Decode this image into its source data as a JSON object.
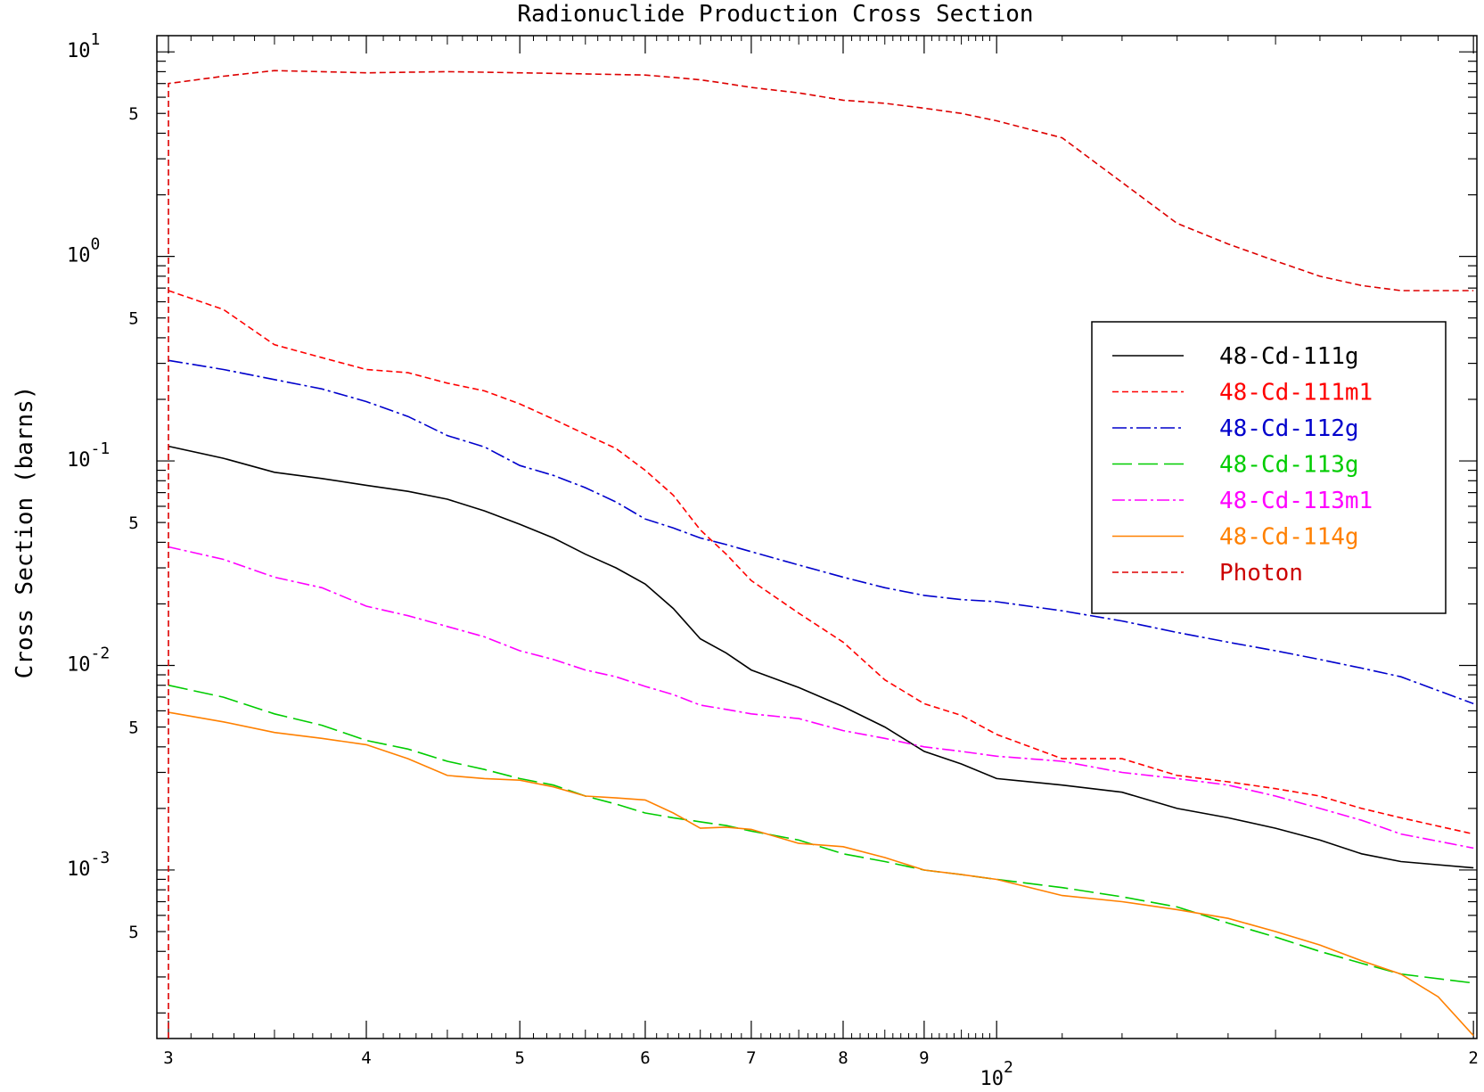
{
  "chart_data": {
    "type": "line",
    "title": "Radionuclide Production Cross Section",
    "ylabel": "Cross Section (barns)",
    "xlabel": "",
    "x_scale": "log",
    "y_scale": "log",
    "xlim": [
      29.5,
      201
    ],
    "ylim": [
      0.00015,
      12
    ],
    "x_ticks": [
      {
        "value": 30,
        "label": "3"
      },
      {
        "value": 40,
        "label": "4"
      },
      {
        "value": 50,
        "label": "5"
      },
      {
        "value": 60,
        "label": "6"
      },
      {
        "value": 70,
        "label": "7"
      },
      {
        "value": 80,
        "label": "8"
      },
      {
        "value": 90,
        "label": "9"
      },
      {
        "value": 100,
        "label": "10",
        "exponent": "2"
      },
      {
        "value": 200,
        "label": "2"
      }
    ],
    "y_major_ticks": [
      {
        "value": 10,
        "base": "10",
        "exponent": "1"
      },
      {
        "value": 1,
        "base": "10",
        "exponent": "0"
      },
      {
        "value": 0.1,
        "base": "10",
        "exponent": "-1"
      },
      {
        "value": 0.01,
        "base": "10",
        "exponent": "-2"
      },
      {
        "value": 0.001,
        "base": "10",
        "exponent": "-3"
      }
    ],
    "y_minor_labels": [
      {
        "value": 5,
        "label": "5"
      },
      {
        "value": 0.5,
        "label": "5"
      },
      {
        "value": 0.05,
        "label": "5"
      },
      {
        "value": 0.005,
        "label": "5"
      },
      {
        "value": 0.0005,
        "label": "5"
      }
    ],
    "grid": false,
    "legend_position": "right",
    "series": [
      {
        "name": "48-Cd-111g",
        "color": "#000000",
        "dash": "",
        "legend_color": "#000000",
        "x": [
          30,
          32.5,
          35,
          37.5,
          40,
          42.5,
          45,
          47.5,
          50,
          52.5,
          55,
          57.5,
          60,
          62.5,
          65,
          67.5,
          70,
          75,
          80,
          85,
          90,
          95,
          100,
          110,
          120,
          130,
          140,
          150,
          160,
          170,
          180,
          200
        ],
        "y": [
          0.118,
          0.103,
          0.088,
          0.082,
          0.076,
          0.071,
          0.065,
          0.057,
          0.049,
          0.042,
          0.035,
          0.03,
          0.025,
          0.019,
          0.0135,
          0.0115,
          0.0095,
          0.0078,
          0.0063,
          0.005,
          0.0038,
          0.0033,
          0.0028,
          0.0026,
          0.0024,
          0.002,
          0.0018,
          0.0016,
          0.0014,
          0.0012,
          0.0011,
          0.001025
        ]
      },
      {
        "name": "48-Cd-111m1",
        "color": "#ff0000",
        "dash": "7,4",
        "legend_color": "#ff0000",
        "x": [
          30,
          32.5,
          35,
          37.5,
          40,
          42.5,
          45,
          47.5,
          50,
          52.5,
          55,
          57.5,
          60,
          62.5,
          65,
          67.5,
          70,
          75,
          80,
          85,
          90,
          95,
          100,
          110,
          120,
          130,
          140,
          150,
          160,
          170,
          180,
          200
        ],
        "y": [
          0.68,
          0.55,
          0.37,
          0.32,
          0.28,
          0.27,
          0.24,
          0.22,
          0.19,
          0.16,
          0.135,
          0.115,
          0.09,
          0.068,
          0.046,
          0.035,
          0.026,
          0.018,
          0.013,
          0.0085,
          0.0065,
          0.0057,
          0.0046,
          0.0035,
          0.0035,
          0.0029,
          0.0027,
          0.0025,
          0.0023,
          0.002,
          0.0018,
          0.0015
        ]
      },
      {
        "name": "48-Cd-112g",
        "color": "#0000cc",
        "dash": "16,4,3,4",
        "legend_color": "#0000cc",
        "x": [
          30,
          32.5,
          35,
          37.5,
          40,
          42.5,
          45,
          47.5,
          50,
          52.5,
          55,
          57.5,
          60,
          62.5,
          65,
          67.5,
          70,
          75,
          80,
          85,
          90,
          95,
          100,
          110,
          120,
          130,
          140,
          150,
          160,
          170,
          180,
          200
        ],
        "y": [
          0.31,
          0.28,
          0.25,
          0.225,
          0.195,
          0.165,
          0.133,
          0.117,
          0.095,
          0.085,
          0.074,
          0.063,
          0.052,
          0.047,
          0.042,
          0.039,
          0.036,
          0.031,
          0.027,
          0.024,
          0.022,
          0.021,
          0.0205,
          0.0185,
          0.0165,
          0.0145,
          0.013,
          0.0118,
          0.0107,
          0.0097,
          0.0088,
          0.0065
        ]
      },
      {
        "name": "48-Cd-113g",
        "color": "#00cc00",
        "dash": "22,7",
        "legend_color": "#00cc00",
        "x": [
          30,
          32.5,
          35,
          37.5,
          40,
          42.5,
          45,
          47.5,
          50,
          52.5,
          55,
          57.5,
          60,
          62.5,
          65,
          67.5,
          70,
          75,
          80,
          85,
          90,
          95,
          100,
          110,
          120,
          130,
          140,
          150,
          160,
          170,
          180,
          200
        ],
        "y": [
          0.008,
          0.007,
          0.0058,
          0.0051,
          0.0043,
          0.0039,
          0.0034,
          0.0031,
          0.0028,
          0.0026,
          0.0023,
          0.0021,
          0.0019,
          0.0018,
          0.00172,
          0.00165,
          0.00155,
          0.0014,
          0.0012,
          0.0011,
          0.001,
          0.00095,
          0.0009,
          0.00082,
          0.00074,
          0.00066,
          0.00055,
          0.00047,
          0.0004,
          0.00035,
          0.00031,
          0.00028
        ]
      },
      {
        "name": "48-Cd-113m1",
        "color": "#ff00ff",
        "dash": "14,4,3,4",
        "legend_color": "#ff00ff",
        "x": [
          30,
          32.5,
          35,
          37.5,
          40,
          42.5,
          45,
          47.5,
          50,
          52.5,
          55,
          57.5,
          60,
          62.5,
          65,
          67.5,
          70,
          75,
          80,
          85,
          90,
          95,
          100,
          110,
          120,
          130,
          140,
          150,
          160,
          170,
          180,
          200
        ],
        "y": [
          0.038,
          0.033,
          0.027,
          0.024,
          0.0195,
          0.0175,
          0.0155,
          0.0138,
          0.0118,
          0.0107,
          0.0095,
          0.0088,
          0.0079,
          0.0072,
          0.0064,
          0.0061,
          0.0058,
          0.0055,
          0.0048,
          0.0044,
          0.004,
          0.0038,
          0.0036,
          0.0034,
          0.003,
          0.0028,
          0.0026,
          0.0023,
          0.002,
          0.00175,
          0.0015,
          0.00128
        ]
      },
      {
        "name": "48-Cd-114g",
        "color": "#ff8000",
        "dash": "",
        "legend_color": "#ff8000",
        "x": [
          30,
          32.5,
          35,
          37.5,
          40,
          42.5,
          45,
          47.5,
          50,
          52.5,
          55,
          57.5,
          60,
          62.5,
          65,
          67.5,
          70,
          75,
          80,
          85,
          90,
          95,
          100,
          110,
          120,
          130,
          140,
          150,
          160,
          170,
          180,
          190,
          200
        ],
        "y": [
          0.0059,
          0.0053,
          0.0047,
          0.0044,
          0.0041,
          0.0035,
          0.0029,
          0.0028,
          0.00275,
          0.00255,
          0.0023,
          0.00225,
          0.0022,
          0.0019,
          0.0016,
          0.00162,
          0.00158,
          0.00135,
          0.0013,
          0.00115,
          0.001,
          0.00095,
          0.0009,
          0.00075,
          0.0007,
          0.00064,
          0.00058,
          0.0005,
          0.00043,
          0.00036,
          0.00031,
          0.00024,
          0.000155
        ]
      },
      {
        "name": "Photon",
        "color": "#dd0000",
        "dash": "7,4",
        "legend_color": "#cc0000",
        "x": [
          30,
          30,
          32.5,
          35,
          37.5,
          40,
          42.5,
          45,
          47.5,
          50,
          52.5,
          55,
          57.5,
          60,
          62.5,
          65,
          67.5,
          70,
          75,
          80,
          85,
          90,
          95,
          100,
          110,
          120,
          130,
          140,
          150,
          160,
          170,
          180,
          200
        ],
        "y": [
          0.00015,
          7.0,
          7.6,
          8.1,
          8.0,
          7.9,
          7.95,
          8.0,
          7.95,
          7.9,
          7.85,
          7.8,
          7.75,
          7.7,
          7.5,
          7.3,
          7.0,
          6.7,
          6.3,
          5.8,
          5.6,
          5.3,
          5.0,
          4.6,
          3.8,
          2.3,
          1.45,
          1.15,
          0.95,
          0.8,
          0.72,
          0.68,
          0.68
        ]
      }
    ]
  }
}
